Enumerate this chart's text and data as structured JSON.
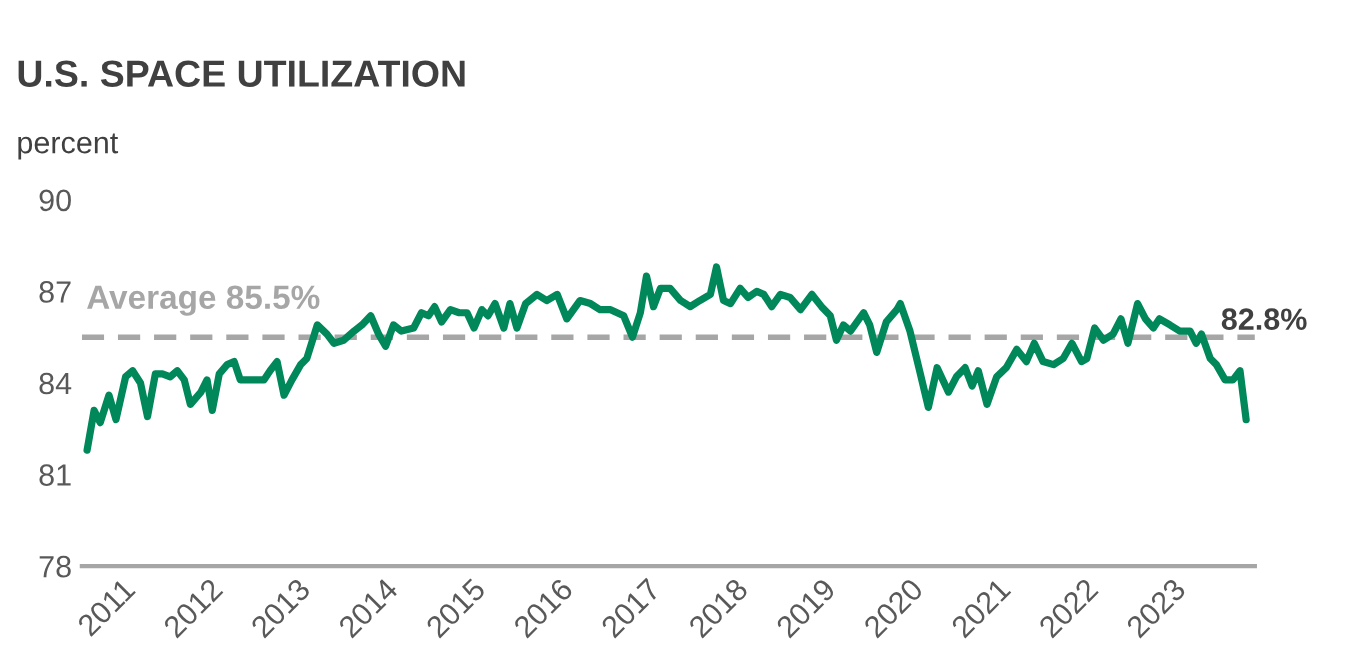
{
  "chart_data": {
    "type": "line",
    "title": "U.S. SPACE UTILIZATION",
    "ylabel": "percent",
    "ylim": [
      78,
      90
    ],
    "yticks": [
      78,
      81,
      84,
      87,
      90
    ],
    "xlim": [
      2010.55,
      2023.95
    ],
    "xticks": [
      2011,
      2012,
      2013,
      2014,
      2015,
      2016,
      2017,
      2018,
      2019,
      2020,
      2021,
      2022,
      2023
    ],
    "grid": false,
    "legend": false,
    "marker": "none",
    "line_style": "solid",
    "ref_lines": [
      {
        "axis": "y",
        "value": 85.5,
        "label": "Average 85.5%",
        "color": "#a6a6a6",
        "line_style": "dashed"
      }
    ],
    "annotations": [
      "82.8%"
    ],
    "series": [
      {
        "color": "#00875a",
        "x": [
          2010.61,
          2010.69,
          2010.76,
          2010.86,
          2010.94,
          2011.05,
          2011.13,
          2011.22,
          2011.3,
          2011.39,
          2011.47,
          2011.56,
          2011.64,
          2011.72,
          2011.79,
          2011.91,
          2011.98,
          2012.04,
          2012.12,
          2012.21,
          2012.29,
          2012.36,
          2012.45,
          2012.55,
          2012.63,
          2012.7,
          2012.78,
          2012.86,
          2012.95,
          2013.05,
          2013.12,
          2013.24,
          2013.35,
          2013.43,
          2013.54,
          2013.66,
          2013.75,
          2013.85,
          2013.94,
          2014.02,
          2014.11,
          2014.2,
          2014.34,
          2014.43,
          2014.51,
          2014.58,
          2014.66,
          2014.76,
          2014.86,
          2014.95,
          2015.03,
          2015.12,
          2015.19,
          2015.27,
          2015.37,
          2015.44,
          2015.52,
          2015.62,
          2015.75,
          2015.86,
          2015.98,
          2016.09,
          2016.24,
          2016.36,
          2016.47,
          2016.59,
          2016.74,
          2016.84,
          2016.93,
          2017.0,
          2017.08,
          2017.16,
          2017.27,
          2017.39,
          2017.5,
          2017.61,
          2017.73,
          2017.8,
          2017.88,
          2017.96,
          2018.07,
          2018.16,
          2018.26,
          2018.34,
          2018.43,
          2018.53,
          2018.64,
          2018.76,
          2018.89,
          2019.0,
          2019.1,
          2019.17,
          2019.25,
          2019.33,
          2019.48,
          2019.55,
          2019.63,
          2019.74,
          2019.86,
          2019.9,
          2020.01,
          2020.12,
          2020.22,
          2020.32,
          2020.45,
          2020.54,
          2020.64,
          2020.72,
          2020.79,
          2020.89,
          2021.0,
          2021.11,
          2021.23,
          2021.34,
          2021.43,
          2021.53,
          2021.65,
          2021.76,
          2021.86,
          2021.97,
          2022.03,
          2022.12,
          2022.22,
          2022.33,
          2022.42,
          2022.5,
          2022.61,
          2022.7,
          2022.79,
          2022.86,
          2022.98,
          2023.09,
          2023.21,
          2023.28,
          2023.34,
          2023.44,
          2023.51,
          2023.61,
          2023.7,
          2023.78,
          2023.85
        ],
        "values": [
          81.8,
          83.1,
          82.7,
          83.6,
          82.8,
          84.2,
          84.4,
          84.0,
          82.9,
          84.3,
          84.3,
          84.2,
          84.4,
          84.1,
          83.3,
          83.7,
          84.1,
          83.1,
          84.3,
          84.6,
          84.7,
          84.1,
          84.1,
          84.1,
          84.1,
          84.4,
          84.7,
          83.6,
          84.1,
          84.6,
          84.8,
          85.9,
          85.6,
          85.3,
          85.4,
          85.7,
          85.9,
          86.2,
          85.6,
          85.2,
          85.9,
          85.7,
          85.8,
          86.3,
          86.2,
          86.5,
          86.0,
          86.4,
          86.3,
          86.3,
          85.8,
          86.4,
          86.2,
          86.6,
          85.8,
          86.6,
          85.8,
          86.6,
          86.9,
          86.7,
          86.9,
          86.1,
          86.7,
          86.6,
          86.4,
          86.4,
          86.2,
          85.5,
          86.3,
          87.5,
          86.5,
          87.1,
          87.1,
          86.7,
          86.5,
          86.7,
          86.9,
          87.8,
          86.7,
          86.6,
          87.1,
          86.8,
          87.0,
          86.9,
          86.5,
          86.9,
          86.8,
          86.4,
          86.9,
          86.5,
          86.2,
          85.4,
          85.9,
          85.7,
          86.3,
          85.9,
          85.0,
          86.0,
          86.4,
          86.6,
          85.7,
          84.4,
          83.2,
          84.5,
          83.7,
          84.2,
          84.5,
          83.9,
          84.4,
          83.3,
          84.2,
          84.5,
          85.1,
          84.7,
          85.3,
          84.7,
          84.6,
          84.8,
          85.3,
          84.7,
          84.8,
          85.8,
          85.4,
          85.6,
          86.1,
          85.3,
          86.6,
          86.1,
          85.8,
          86.1,
          85.9,
          85.7,
          85.7,
          85.3,
          85.6,
          84.8,
          84.6,
          84.1,
          84.1,
          84.4,
          82.8
        ]
      }
    ]
  }
}
